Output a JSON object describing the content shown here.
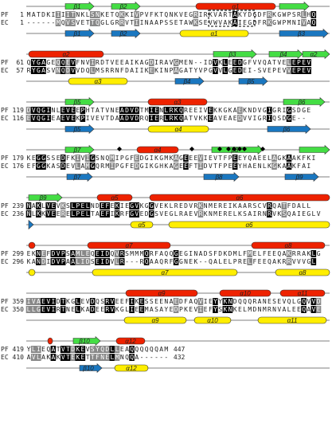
{
  "colors": {
    "pf_helix": "#ee2200",
    "pf_strand": "#44dd44",
    "ec_helix": "#ffee00",
    "ec_strand": "#1a77c0",
    "line": "#aaaaaa",
    "identical": "#000000",
    "similar": "#888888",
    "plain_text": "#222222"
  },
  "labels": {
    "pf": "PF",
    "ec": "EC"
  },
  "blocks": [
    {
      "pf_start": "1",
      "ec_start": "1",
      "pf_seq": "MATDKIIIITNKLSNKETQKKIVPVFKTQNKVEGRIRKVARTAKYDGDFRKGWPSRLHQ",
      "ec_seq": "------MQVSVETTQGLGRRVTIINAAPSSETAWKSEVWVAKAIEGDFRKGWPMNIVAQ",
      "pf_ss": [
        {
          "type": "strand",
          "label": "β1"
        },
        {
          "type": "strand",
          "label": "β2"
        },
        {
          "type": "helix",
          "label": "α1"
        },
        {
          "type": "strand",
          "label": ""
        }
      ],
      "ec_ss": [
        {
          "type": "strand",
          "label": "β1"
        },
        {
          "type": "strand",
          "label": "β2"
        },
        {
          "type": "helix",
          "label": "α1"
        },
        {
          "type": "strand",
          "label": "β3"
        }
      ]
    },
    {
      "pf_start": "61",
      "ec_start": "57",
      "pf_seq": "QYGAGEQQEVFNVIRDTVEEAIKAGDIRAVGMEN--IDVKLEEDGFVVQATVELEPEV",
      "ec_seq": "RYGASVNQDVVDQLMSRRNFDAIIKEKINPAGATYVPGVVLGEDEI-SVEPEVVEPEV",
      "pf_ss": [
        {
          "type": "helix",
          "label": "α2"
        },
        {
          "type": "strand",
          "label": "β3"
        },
        {
          "type": "strand",
          "label": "β4"
        },
        {
          "type": "strand",
          "label": "α2"
        }
      ],
      "ec_ss": [
        {
          "type": "helix",
          "label": "α3"
        },
        {
          "type": "strand",
          "label": "β4"
        },
        {
          "type": "strand",
          "label": "β5"
        }
      ]
    },
    {
      "pf_start": "119",
      "ec_start": "116",
      "pf_seq": "DVQGINLEVEEPHTATVNEADVDTMIENLRKQREEIVEKKGKAEKNDVGIGRIGSDGE",
      "ec_seq": "EVQGIEAEVEKPIVEVTDAADVDRQIERLRKQATVKKEAVEAEDVVIGRIQSDGE--",
      "pf_ss": [
        {
          "type": "strand",
          "label": "β5"
        },
        {
          "type": "helix",
          "label": "α3"
        },
        {
          "type": "strand",
          "label": "β6"
        }
      ],
      "ec_ss": [
        {
          "type": "strand",
          "label": "β5"
        },
        {
          "type": "helix",
          "label": "α4"
        },
        {
          "type": "strand",
          "label": "β6"
        }
      ]
    },
    {
      "pf_start": "179",
      "ec_start": "176",
      "pf_seq": "KEGGSSEDFKIVIGSNQMIPGFEDGIKGMKAGEEEVIEVTFPEEYQAEELAGKAAKFKI",
      "ec_seq": "EFGGKASDEVLAMGQRMIPGFEDGIKGHKAGEEFTIDVTFPEEYHAENLKGKAAKFAI",
      "pf_ss": [
        {
          "type": "strand",
          "label": "β7"
        },
        {
          "type": "helix",
          "label": "α4"
        },
        {
          "type": "strand",
          "label": "β8"
        },
        {
          "type": "strand",
          "label": ""
        }
      ],
      "ec_ss": [
        {
          "type": "strand",
          "label": "β7"
        },
        {
          "type": "strand",
          "label": "β8"
        },
        {
          "type": "strand",
          "label": "β9"
        }
      ]
    },
    {
      "pf_start": "239",
      "ec_start": "236",
      "pf_seq": "NAKLVEVKSLPELNDEFEKIEGVKGGVEKLREDVRKNMEREIKAARSCVRQATFDALL",
      "ec_seq": "NLKKVEERELPELTAEFIKRFGVEDGSVEGLRAEVRKNMERELKSAIRNRVKSQAIEGLV",
      "pf_ss": [
        {
          "type": "strand",
          "label": "β9"
        },
        {
          "type": "helix",
          "label": "α5"
        },
        {
          "type": "helix",
          "label": "α6"
        }
      ],
      "ec_ss": [
        {
          "type": "strand",
          "label": ""
        },
        {
          "type": "helix",
          "label": "α5"
        },
        {
          "type": "helix",
          "label": "α6"
        }
      ]
    },
    {
      "pf_start": "299",
      "ec_start": "296",
      "pf_seq": "EKNEFDVPSAMLEQEIDQVRSMMMQRFAQQGEGINADSFDKDMLFMELFEEQAKRRAKLG",
      "ec_seq": "KANDIDVPAALIDSEIDVLR---RQAAQRFGGNEK--QALELPRELFEEQAKRRVVVGL",
      "pf_ss": [
        {
          "type": "helix",
          "label": ""
        },
        {
          "type": "helix",
          "label": "α7"
        },
        {
          "type": "helix",
          "label": "α8"
        }
      ],
      "ec_ss": [
        {
          "type": "helix",
          "label": ""
        },
        {
          "type": "helix",
          "label": "α7"
        },
        {
          "type": "helix",
          "label": "α8"
        }
      ]
    },
    {
      "pf_start": "359",
      "ec_start": "350",
      "pf_seq": "IVAEVIDTKGLEVDQSRVEEFIKESSEENAEDFAQVIEYYKNDQQQRANESEVQLGQVVD",
      "ec_seq": "LLGEVIRTNELKADEERVKGLIEEMASAYEDPKEVIEFYSKNKELMDNMRNVALEEQAVE",
      "pf_ss": [
        {
          "type": "helix",
          "label": "α9"
        },
        {
          "type": "helix",
          "label": "α10"
        },
        {
          "type": "helix",
          "label": "α11"
        }
      ],
      "ec_ss": [
        {
          "type": "helix",
          "label": "α9"
        },
        {
          "type": "helix",
          "label": "α10"
        },
        {
          "type": "helix",
          "label": "α11"
        }
      ]
    },
    {
      "pf_start": "419",
      "ec_start": "410",
      "pf_seq": "YLIEQATVTDKEVSYQDLLEAQQQQQQAM",
      "ec_seq": "AVLAKAKVTEKETTFNELMNQQA------",
      "pf_end": "447",
      "ec_end": "432",
      "pf_ss": [
        {
          "type": "helix",
          "label": ""
        },
        {
          "type": "strand",
          "label": "β10"
        },
        {
          "type": "helix",
          "label": "α12"
        }
      ],
      "ec_ss": [
        {
          "type": "strand",
          "label": "β10"
        },
        {
          "type": "helix",
          "label": "α12"
        }
      ]
    }
  ]
}
